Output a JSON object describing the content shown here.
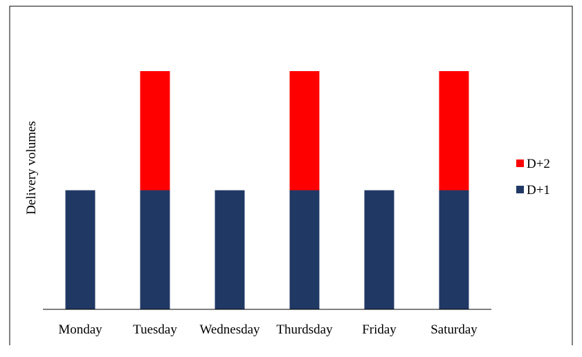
{
  "chart_data": {
    "type": "bar",
    "stacked": true,
    "ylabel": "Delivery volumes",
    "categories": [
      "Monday",
      "Tuesday",
      "Wednesday",
      "Thurdsday",
      "Friday",
      "Saturday"
    ],
    "series": [
      {
        "name": "D+1",
        "color": "#203864",
        "values": [
          1,
          1,
          1,
          1,
          1,
          1
        ]
      },
      {
        "name": "D+2",
        "color": "#ff0000",
        "values": [
          0,
          1,
          0,
          1,
          0,
          1
        ]
      }
    ],
    "ylim": [
      0,
      2.01
    ],
    "grid": false,
    "legend": "right"
  }
}
